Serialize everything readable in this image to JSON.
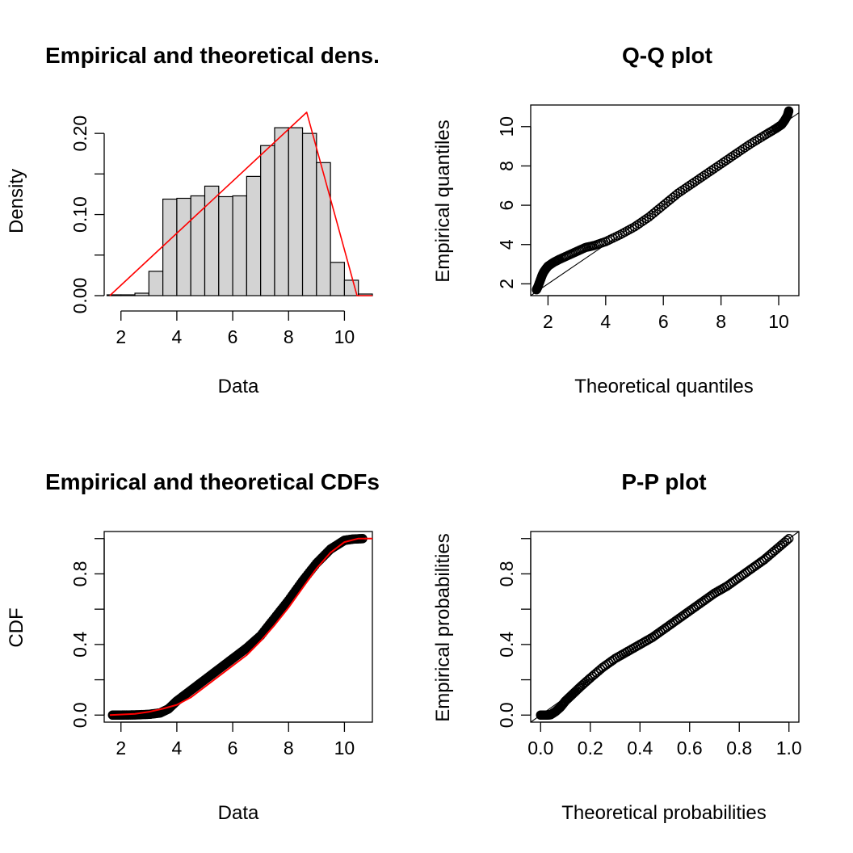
{
  "colors": {
    "axis": "#000000",
    "bar_fill": "#d3d3d3",
    "fit_line": "#ff0000",
    "points": "#000000"
  },
  "chart_data": [
    {
      "type": "bar",
      "title": "Empirical and theoretical dens.",
      "xlabel": "Data",
      "ylabel": "Density",
      "xlim": [
        1.4,
        11.0
      ],
      "ylim": [
        0.0,
        0.235
      ],
      "x_ticks": [
        2,
        4,
        6,
        8,
        10
      ],
      "x_tick_labels": [
        "2",
        "4",
        "6",
        "8",
        "10"
      ],
      "y_ticks": [
        0.0,
        0.05,
        0.1,
        0.15,
        0.2
      ],
      "y_tick_labels": [
        "0.00",
        "",
        "0.10",
        "",
        "0.20"
      ],
      "histogram": {
        "bin_edges": [
          1.5,
          2.0,
          2.5,
          3.0,
          3.5,
          4.0,
          4.5,
          5.0,
          5.5,
          6.0,
          6.5,
          7.0,
          7.5,
          8.0,
          8.5,
          9.0,
          9.5,
          10.0,
          10.5,
          11.0
        ],
        "densities": [
          0.001,
          0.001,
          0.003,
          0.03,
          0.119,
          0.12,
          0.123,
          0.135,
          0.122,
          0.123,
          0.147,
          0.185,
          0.207,
          0.207,
          0.2,
          0.164,
          0.041,
          0.019,
          0.002
        ]
      },
      "fit_curve": {
        "name": "triangular",
        "x": [
          1.6,
          8.65,
          10.45,
          11.0
        ],
        "y": [
          0.0,
          0.226,
          0.0,
          0.0
        ]
      }
    },
    {
      "type": "scatter",
      "title": "Q-Q plot",
      "xlabel": "Theoretical quantiles",
      "ylabel": "Empirical quantiles",
      "xlim": [
        1.4,
        10.7
      ],
      "ylim": [
        1.4,
        11.1
      ],
      "x_ticks": [
        2,
        4,
        6,
        8,
        10
      ],
      "y_ticks": [
        2,
        4,
        6,
        8,
        10
      ],
      "reference_line": "y = x",
      "points": [
        [
          1.6,
          1.7
        ],
        [
          1.65,
          1.85
        ],
        [
          1.7,
          2.05
        ],
        [
          1.75,
          2.25
        ],
        [
          1.8,
          2.45
        ],
        [
          1.85,
          2.6
        ],
        [
          1.92,
          2.75
        ],
        [
          2.0,
          2.9
        ],
        [
          2.2,
          3.1
        ],
        [
          2.4,
          3.25
        ],
        [
          2.7,
          3.45
        ],
        [
          3.0,
          3.65
        ],
        [
          3.3,
          3.85
        ],
        [
          3.6,
          3.95
        ],
        [
          4.0,
          4.15
        ],
        [
          4.5,
          4.5
        ],
        [
          5.0,
          4.9
        ],
        [
          5.5,
          5.4
        ],
        [
          6.0,
          6.0
        ],
        [
          6.5,
          6.6
        ],
        [
          7.0,
          7.1
        ],
        [
          7.5,
          7.6
        ],
        [
          8.0,
          8.1
        ],
        [
          8.5,
          8.6
        ],
        [
          9.0,
          9.1
        ],
        [
          9.5,
          9.55
        ],
        [
          9.9,
          9.9
        ],
        [
          10.1,
          10.1
        ],
        [
          10.2,
          10.3
        ],
        [
          10.3,
          10.55
        ],
        [
          10.35,
          10.8
        ]
      ]
    },
    {
      "type": "line",
      "title": "Empirical and theoretical CDFs",
      "xlabel": "Data",
      "ylabel": "CDF",
      "xlim": [
        1.4,
        11.0
      ],
      "ylim": [
        -0.04,
        1.04
      ],
      "x_ticks": [
        2,
        4,
        6,
        8,
        10
      ],
      "y_ticks": [
        0.0,
        0.2,
        0.4,
        0.6,
        0.8,
        1.0
      ],
      "y_tick_labels": [
        "0.0",
        "",
        "0.4",
        "",
        "0.8",
        ""
      ],
      "empirical": {
        "x": [
          1.7,
          2.0,
          2.5,
          3.0,
          3.4,
          3.7,
          4.0,
          4.5,
          5.0,
          5.5,
          6.0,
          6.5,
          7.0,
          7.5,
          8.0,
          8.5,
          9.0,
          9.5,
          9.8,
          10.0,
          10.3,
          10.7
        ],
        "y": [
          0.0,
          0.0,
          0.001,
          0.004,
          0.012,
          0.035,
          0.08,
          0.14,
          0.2,
          0.26,
          0.32,
          0.38,
          0.45,
          0.55,
          0.65,
          0.76,
          0.86,
          0.94,
          0.97,
          0.99,
          0.997,
          1.0
        ]
      },
      "theoretical": {
        "x": [
          1.6,
          2.5,
          3.0,
          3.5,
          4.0,
          4.5,
          5.0,
          5.5,
          6.0,
          6.5,
          7.0,
          7.5,
          8.0,
          8.5,
          9.0,
          9.5,
          10.0,
          10.5,
          11.0
        ],
        "y": [
          0.0,
          0.007,
          0.018,
          0.036,
          0.058,
          0.1,
          0.16,
          0.22,
          0.28,
          0.34,
          0.42,
          0.51,
          0.61,
          0.72,
          0.83,
          0.92,
          0.98,
          1.0,
          1.0
        ]
      }
    },
    {
      "type": "scatter",
      "title": "P-P plot",
      "xlabel": "Theoretical probabilities",
      "ylabel": "Empirical probabilities",
      "xlim": [
        -0.04,
        1.04
      ],
      "ylim": [
        -0.04,
        1.04
      ],
      "x_ticks": [
        0.0,
        0.2,
        0.4,
        0.6,
        0.8,
        1.0
      ],
      "x_tick_labels": [
        "0.0",
        "0.2",
        "0.4",
        "0.6",
        "0.8",
        "1.0"
      ],
      "y_ticks": [
        0.0,
        0.2,
        0.4,
        0.6,
        0.8,
        1.0
      ],
      "y_tick_labels": [
        "0.0",
        "",
        "0.4",
        "",
        "0.8",
        ""
      ],
      "reference_line": "y = x",
      "points": [
        [
          0.0,
          0.0
        ],
        [
          0.02,
          0.0
        ],
        [
          0.04,
          0.002
        ],
        [
          0.06,
          0.02
        ],
        [
          0.08,
          0.045
        ],
        [
          0.1,
          0.08
        ],
        [
          0.13,
          0.12
        ],
        [
          0.16,
          0.16
        ],
        [
          0.2,
          0.21
        ],
        [
          0.25,
          0.27
        ],
        [
          0.3,
          0.32
        ],
        [
          0.35,
          0.36
        ],
        [
          0.4,
          0.4
        ],
        [
          0.45,
          0.44
        ],
        [
          0.5,
          0.49
        ],
        [
          0.55,
          0.54
        ],
        [
          0.6,
          0.59
        ],
        [
          0.65,
          0.64
        ],
        [
          0.7,
          0.69
        ],
        [
          0.75,
          0.73
        ],
        [
          0.8,
          0.78
        ],
        [
          0.85,
          0.83
        ],
        [
          0.9,
          0.88
        ],
        [
          0.95,
          0.94
        ],
        [
          1.0,
          1.0
        ]
      ]
    }
  ]
}
